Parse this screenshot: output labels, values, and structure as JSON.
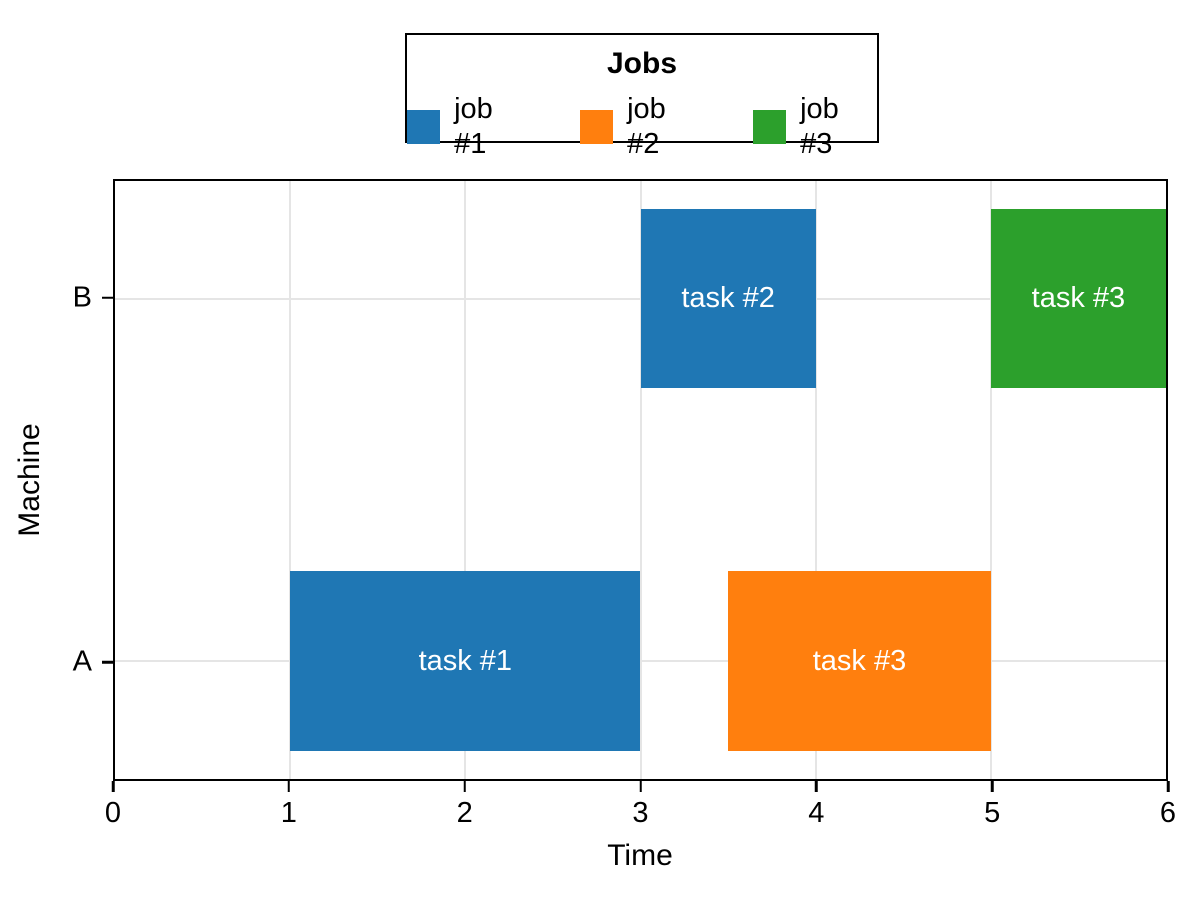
{
  "chart_data": {
    "type": "bar",
    "subtype": "gantt",
    "orientation": "horizontal",
    "title": "",
    "xlabel": "Time",
    "ylabel": "Machine",
    "xlim": [
      0,
      6
    ],
    "x_ticks": [
      0,
      1,
      2,
      3,
      4,
      5,
      6
    ],
    "y_categories": [
      "A",
      "B"
    ],
    "grid": true,
    "legend": {
      "title": "Jobs",
      "position": "top-center",
      "entries": [
        {
          "label": "job #1",
          "color": "#1f77b4"
        },
        {
          "label": "job #2",
          "color": "#ff7f0e"
        },
        {
          "label": "job #3",
          "color": "#2ca02c"
        }
      ]
    },
    "tasks": [
      {
        "machine": "A",
        "job": "job #1",
        "label": "task #1",
        "start": 1,
        "end": 3,
        "color": "#1f77b4"
      },
      {
        "machine": "A",
        "job": "job #2",
        "label": "task #3",
        "start": 3.5,
        "end": 5,
        "color": "#ff7f0e"
      },
      {
        "machine": "B",
        "job": "job #1",
        "label": "task #2",
        "start": 3,
        "end": 4,
        "color": "#1f77b4"
      },
      {
        "machine": "B",
        "job": "job #3",
        "label": "task #3",
        "start": 5,
        "end": 6,
        "color": "#2ca02c"
      }
    ],
    "colors": {
      "job #1": "#1f77b4",
      "job #2": "#ff7f0e",
      "job #3": "#2ca02c"
    },
    "bar_label_color": "#ffffff",
    "grid_color": "#e5e5e5",
    "frame_color": "#000000"
  }
}
